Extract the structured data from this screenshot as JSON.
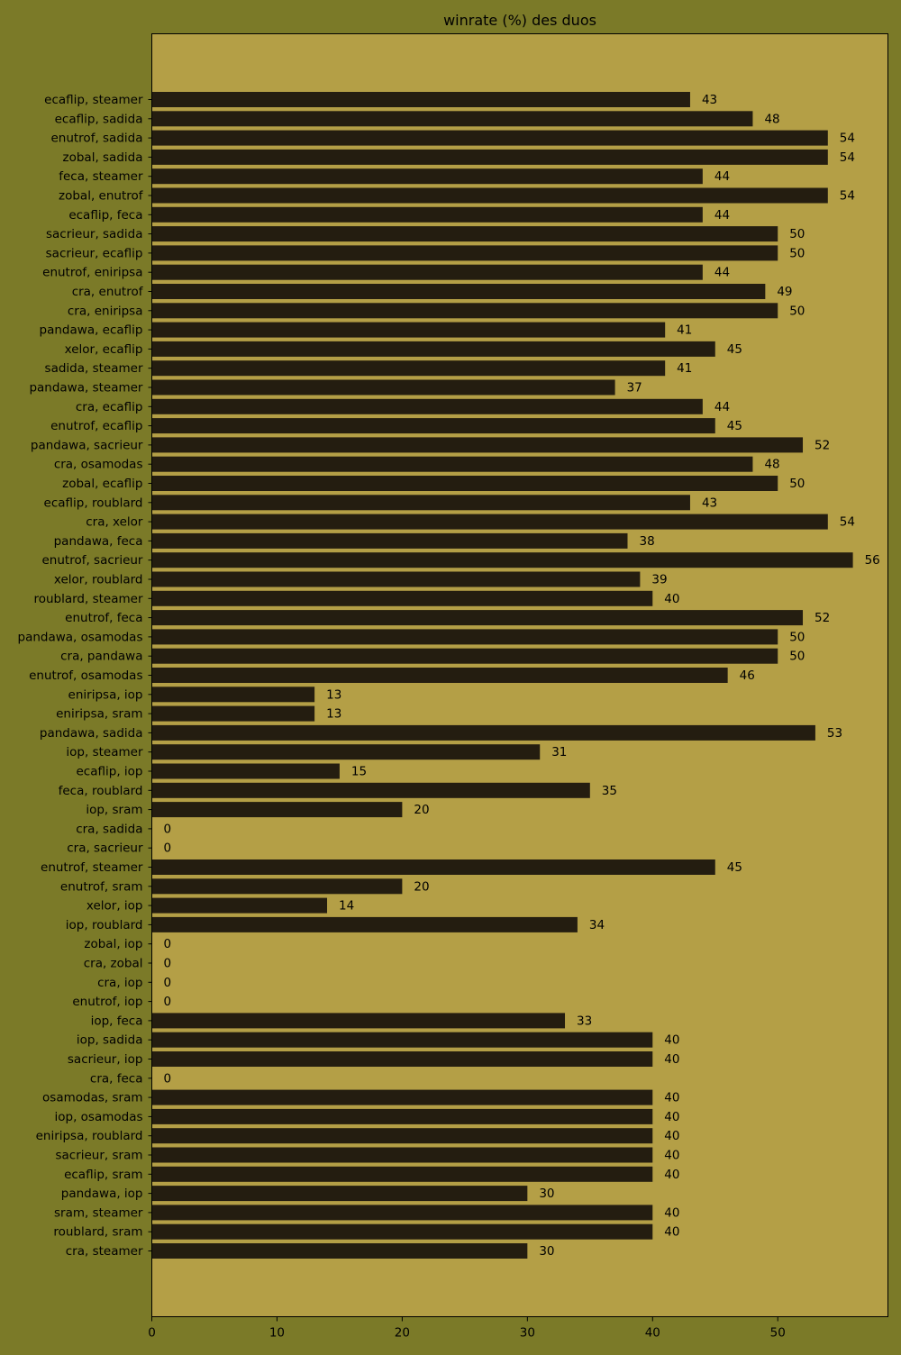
{
  "colors": {
    "figure_background": "#7b7a28",
    "plot_background": "#b49f46",
    "bar": "#241d10",
    "text": "#000000"
  },
  "chart_data": {
    "type": "bar",
    "orientation": "horizontal",
    "title": "winrate (%) des duos",
    "xlabel": "",
    "ylabel": "",
    "xlim": [
      0,
      58.8
    ],
    "xticks": [
      0,
      10,
      20,
      30,
      40,
      50
    ],
    "grid": false,
    "legend": "none",
    "categories": [
      "ecaflip, steamer",
      "ecaflip, sadida",
      "enutrof, sadida",
      "zobal, sadida",
      "feca, steamer",
      "zobal, enutrof",
      "ecaflip, feca",
      "sacrieur, sadida",
      "sacrieur, ecaflip",
      "enutrof, eniripsa",
      "cra, enutrof",
      "cra, eniripsa",
      "pandawa, ecaflip",
      "xelor, ecaflip",
      "sadida, steamer",
      "pandawa, steamer",
      "cra, ecaflip",
      "enutrof, ecaflip",
      "pandawa, sacrieur",
      "cra, osamodas",
      "zobal, ecaflip",
      "ecaflip, roublard",
      "cra, xelor",
      "pandawa, feca",
      "enutrof, sacrieur",
      "xelor, roublard",
      "roublard, steamer",
      "enutrof, feca",
      "pandawa, osamodas",
      "cra, pandawa",
      "enutrof, osamodas",
      "eniripsa, iop",
      "eniripsa, sram",
      "pandawa, sadida",
      "iop, steamer",
      "ecaflip, iop",
      "feca, roublard",
      "iop, sram",
      "cra, sadida",
      "cra, sacrieur",
      "enutrof, steamer",
      "enutrof, sram",
      "xelor, iop",
      "iop, roublard",
      "zobal, iop",
      "cra, zobal",
      "cra, iop",
      "enutrof, iop",
      "iop, feca",
      "iop, sadida",
      "sacrieur, iop",
      "cra, feca",
      "osamodas, sram",
      "iop, osamodas",
      "eniripsa, roublard",
      "sacrieur, sram",
      "ecaflip, sram",
      "pandawa, iop",
      "sram, steamer",
      "roublard, sram",
      "cra, steamer"
    ],
    "values": [
      43,
      48,
      54,
      54,
      44,
      54,
      44,
      50,
      50,
      44,
      49,
      50,
      41,
      45,
      41,
      37,
      44,
      45,
      52,
      48,
      50,
      43,
      54,
      38,
      56,
      39,
      40,
      52,
      50,
      50,
      46,
      13,
      13,
      53,
      31,
      15,
      35,
      20,
      0,
      0,
      45,
      20,
      14,
      34,
      0,
      0,
      0,
      0,
      33,
      40,
      40,
      0,
      40,
      40,
      40,
      40,
      40,
      30,
      40,
      40,
      30
    ]
  }
}
